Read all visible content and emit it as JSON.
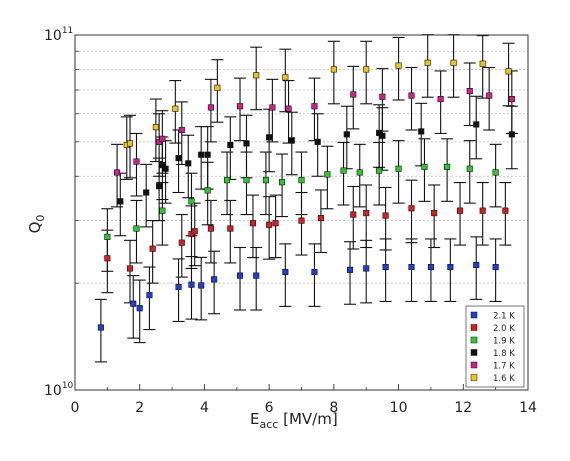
{
  "chart_data": {
    "type": "scatter",
    "y_scale": "log",
    "xlim": [
      0,
      14
    ],
    "ylim": [
      10000000000.0,
      100000000000.0
    ],
    "grid": true,
    "legend_position": "bottom-right",
    "xlabel": {
      "base": "E",
      "sub": "acc",
      "rest": " [MV/m]"
    },
    "ylabel": {
      "base": "Q",
      "sub": "0"
    },
    "x_ticks": [
      0,
      2,
      4,
      6,
      8,
      10,
      12,
      14
    ],
    "x_tick_labels": [
      "0",
      "2",
      "4",
      "6",
      "8",
      "10",
      "12",
      "14"
    ],
    "y_ticks": [
      10000000000.0,
      100000000000.0
    ],
    "y_tick_labels": [
      {
        "base": "10",
        "exp": "10"
      },
      {
        "base": "10",
        "exp": "11"
      }
    ],
    "error_bar_relative": 0.2,
    "series": [
      {
        "name": "2.1 K",
        "color": "#1f3fcf",
        "x": [
          0.8,
          1.8,
          2.0,
          2.3,
          3.2,
          3.6,
          3.9,
          4.3,
          5.1,
          5.6,
          6.5,
          7.4,
          8.5,
          9.0,
          9.6,
          10.4,
          11.0,
          11.6,
          12.4,
          13.0
        ],
        "y": [
          15000000000.0,
          17500000000.0,
          17000000000.0,
          18500000000.0,
          19500000000.0,
          19800000000.0,
          19700000000.0,
          20500000000.0,
          21000000000.0,
          21000000000.0,
          21500000000.0,
          21500000000.0,
          21800000000.0,
          22000000000.0,
          22200000000.0,
          22200000000.0,
          22200000000.0,
          22200000000.0,
          22500000000.0,
          22200000000.0
        ]
      },
      {
        "name": "2.0 K",
        "color": "#d42020",
        "x": [
          1.0,
          1.7,
          2.4,
          3.3,
          3.6,
          3.7,
          4.2,
          4.8,
          5.5,
          6.0,
          6.2,
          7.0,
          7.6,
          8.6,
          9.0,
          9.6,
          10.4,
          11.1,
          11.9,
          12.6,
          13.3
        ],
        "y": [
          23500000000.0,
          22000000000.0,
          25000000000.0,
          26000000000.0,
          27500000000.0,
          28000000000.0,
          28500000000.0,
          28500000000.0,
          29500000000.0,
          29200000000.0,
          29500000000.0,
          30000000000.0,
          30500000000.0,
          31200000000.0,
          31500000000.0,
          31000000000.0,
          32500000000.0,
          31500000000.0,
          32000000000.0,
          32000000000.0,
          32000000000.0
        ]
      },
      {
        "name": "1.9 K",
        "color": "#2ec82e",
        "x": [
          1.0,
          1.9,
          2.7,
          3.6,
          4.1,
          4.7,
          5.3,
          5.9,
          6.4,
          7.0,
          7.8,
          8.3,
          8.8,
          9.4,
          10.0,
          10.8,
          11.5,
          12.2,
          13.0
        ],
        "y": [
          27000000000.0,
          28500000000.0,
          32000000000.0,
          34000000000.0,
          36500000000.0,
          39000000000.0,
          39000000000.0,
          39000000000.0,
          38500000000.0,
          39000000000.0,
          40500000000.0,
          41500000000.0,
          41000000000.0,
          41500000000.0,
          42000000000.0,
          42500000000.0,
          42500000000.0,
          42000000000.0,
          41000000000.0
        ]
      },
      {
        "name": "1.8 K",
        "color": "#111111",
        "x": [
          1.4,
          2.2,
          2.6,
          2.7,
          2.8,
          3.2,
          3.5,
          3.9,
          4.1,
          4.8,
          5.3,
          6.0,
          6.7,
          7.5,
          8.4,
          9.4,
          9.5,
          10.7,
          12.4,
          13.5
        ],
        "y": [
          34000000000.0,
          36000000000.0,
          37500000000.0,
          43000000000.0,
          42000000000.0,
          45000000000.0,
          43500000000.0,
          46000000000.0,
          46000000000.0,
          49000000000.0,
          49500000000.0,
          51500000000.0,
          50500000000.0,
          50000000000.0,
          52500000000.0,
          53000000000.0,
          52000000000.0,
          53500000000.0,
          56000000000.0,
          52500000000.0
        ]
      },
      {
        "name": "1.7 K",
        "color": "#d02090",
        "x": [
          1.3,
          1.9,
          2.6,
          2.7,
          3.3,
          4.2,
          5.1,
          6.1,
          6.6,
          7.4,
          8.6,
          9.5,
          10.4,
          11.3,
          12.2,
          12.8,
          13.5
        ],
        "y": [
          41000000000.0,
          44000000000.0,
          50000000000.0,
          51000000000.0,
          54000000000.0,
          62500000000.0,
          63000000000.0,
          62500000000.0,
          62000000000.0,
          63000000000.0,
          68000000000.0,
          67000000000.0,
          67500000000.0,
          66000000000.0,
          69500000000.0,
          67500000000.0,
          66000000000.0
        ]
      },
      {
        "name": "1.6 K",
        "color": "#f2c21c",
        "x": [
          1.6,
          1.7,
          2.5,
          3.1,
          4.4,
          5.6,
          6.5,
          8.0,
          9.0,
          10.0,
          10.9,
          11.7,
          12.6,
          13.4
        ],
        "y": [
          49000000000.0,
          49500000000.0,
          55000000000.0,
          62000000000.0,
          71000000000.0,
          77000000000.0,
          76000000000.0,
          80000000000.0,
          80000000000.0,
          82000000000.0,
          83500000000.0,
          83500000000.0,
          83000000000.0,
          79000000000.0
        ]
      }
    ]
  }
}
